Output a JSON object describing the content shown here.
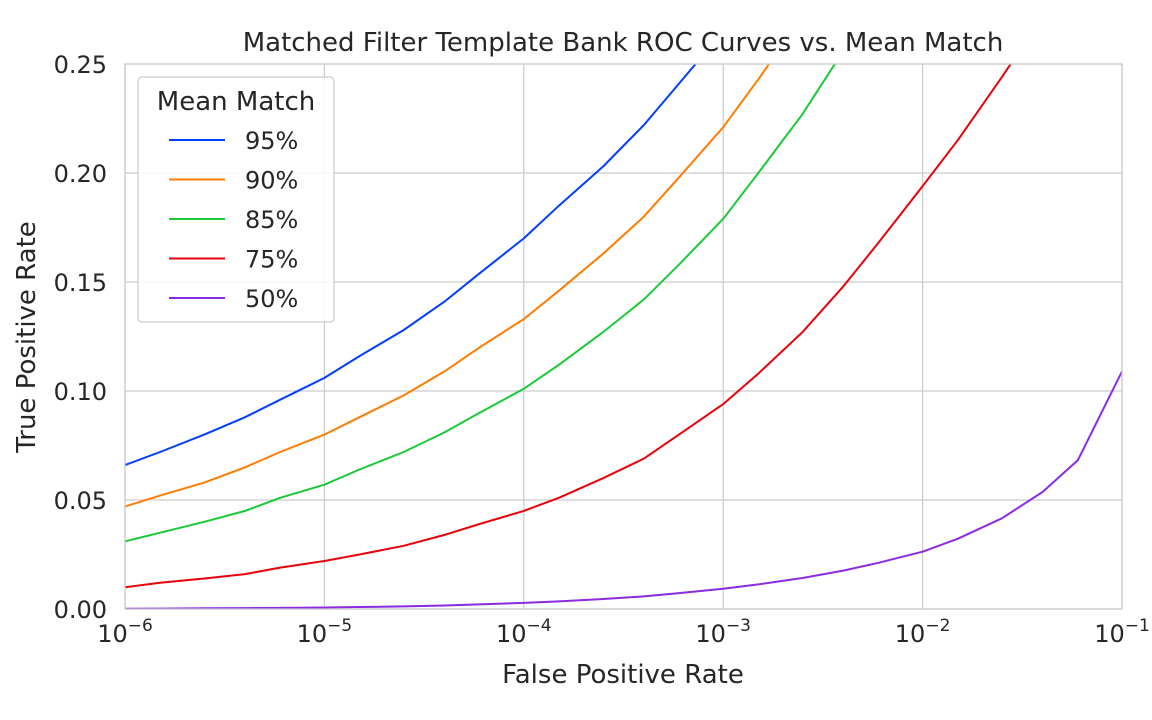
{
  "chart_data": {
    "type": "line",
    "title": "Matched Filter Template Bank ROC Curves vs. Mean Match",
    "xlabel": "False Positive Rate",
    "ylabel": "True Positive Rate",
    "x_scale": "log",
    "xlim": [
      1e-06,
      0.1
    ],
    "ylim": [
      0,
      0.25
    ],
    "x_ticks": [
      {
        "value": 1e-06,
        "base": "10",
        "exp": "−6"
      },
      {
        "value": 1e-05,
        "base": "10",
        "exp": "−5"
      },
      {
        "value": 0.0001,
        "base": "10",
        "exp": "−4"
      },
      {
        "value": 0.001,
        "base": "10",
        "exp": "−3"
      },
      {
        "value": 0.01,
        "base": "10",
        "exp": "−2"
      },
      {
        "value": 0.1,
        "base": "10",
        "exp": "−1"
      }
    ],
    "y_ticks": [
      {
        "value": 0,
        "label": "0.00"
      },
      {
        "value": 0.05,
        "label": "0.05"
      },
      {
        "value": 0.1,
        "label": "0.10"
      },
      {
        "value": 0.15,
        "label": "0.15"
      },
      {
        "value": 0.2,
        "label": "0.20"
      },
      {
        "value": 0.25,
        "label": "0.25"
      }
    ],
    "grid": true,
    "legend": {
      "title": "Mean Match",
      "position": "top-left"
    },
    "x": [
      1e-06,
      1.5e-06,
      2.5e-06,
      4e-06,
      6e-06,
      1e-05,
      1.5e-05,
      2.5e-05,
      4e-05,
      6e-05,
      0.0001,
      0.00015,
      0.00025,
      0.0004,
      0.0006,
      0.001,
      0.0015,
      0.0025,
      0.004,
      0.006,
      0.01,
      0.015,
      0.025,
      0.04,
      0.06,
      0.1
    ],
    "series": [
      {
        "name": "95%",
        "color": "#023eff",
        "values": [
          0.066,
          0.072,
          0.08,
          0.088,
          0.096,
          0.106,
          0.116,
          0.128,
          0.141,
          0.154,
          0.17,
          0.185,
          0.203,
          0.222,
          0.241,
          0.265,
          null,
          null,
          null,
          null,
          null,
          null,
          null,
          null,
          null,
          null
        ]
      },
      {
        "name": "90%",
        "color": "#ff7c00",
        "values": [
          0.047,
          0.052,
          0.058,
          0.065,
          0.072,
          0.08,
          0.088,
          0.098,
          0.109,
          0.12,
          0.133,
          0.146,
          0.163,
          0.18,
          0.198,
          0.221,
          0.243,
          0.272,
          null,
          null,
          null,
          null,
          null,
          null,
          null,
          null
        ]
      },
      {
        "name": "85%",
        "color": "#1ac938",
        "values": [
          0.031,
          0.035,
          0.04,
          0.045,
          0.051,
          0.057,
          0.064,
          0.072,
          0.081,
          0.09,
          0.101,
          0.112,
          0.127,
          0.142,
          0.158,
          0.179,
          0.2,
          0.227,
          0.256,
          null,
          null,
          null,
          null,
          null,
          null,
          null
        ]
      },
      {
        "name": "75%",
        "color": "#e8000b",
        "values": [
          0.01,
          0.012,
          0.014,
          0.016,
          0.019,
          0.022,
          0.025,
          0.029,
          0.034,
          0.039,
          0.045,
          0.051,
          0.06,
          0.069,
          0.08,
          0.094,
          0.108,
          0.127,
          0.148,
          0.168,
          0.194,
          0.215,
          0.244,
          0.272,
          null,
          null
        ]
      },
      {
        "name": "50%",
        "color": "#8b2be2",
        "values": [
          0.0001,
          0.0002,
          0.0003,
          0.0004,
          0.0005,
          0.0007,
          0.0009,
          0.0012,
          0.0016,
          0.0021,
          0.0028,
          0.0035,
          0.0046,
          0.0058,
          0.0073,
          0.0093,
          0.0113,
          0.0142,
          0.0176,
          0.0212,
          0.0263,
          0.0322,
          0.0416,
          0.0537,
          0.0682,
          0.109
        ]
      }
    ]
  }
}
